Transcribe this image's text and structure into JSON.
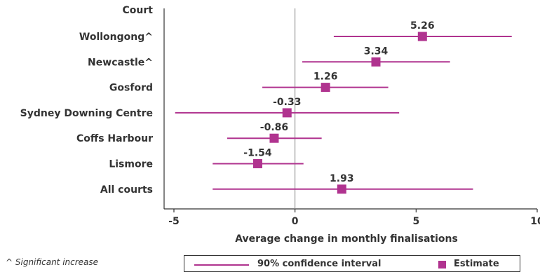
{
  "chart_data": {
    "type": "forest",
    "category_header": "Court",
    "categories": [
      "Wollongong^",
      "Newcastle^",
      "Gosford",
      "Sydney Downing Centre",
      "Coffs Harbour",
      "Lismore",
      "All courts"
    ],
    "estimates": [
      5.26,
      3.34,
      1.26,
      -0.33,
      -0.86,
      -1.54,
      1.93
    ],
    "value_labels": [
      "5.26",
      "3.34",
      "1.26",
      "-0.33",
      "-0.86",
      "-1.54",
      "1.93"
    ],
    "ci_low": [
      1.6,
      0.3,
      -1.35,
      -4.95,
      -2.8,
      -3.4,
      -3.4
    ],
    "ci_high": [
      8.95,
      6.4,
      3.85,
      4.3,
      1.1,
      0.35,
      7.35
    ],
    "xlabel": "Average change in monthly finalisations",
    "xlim": [
      -5,
      10
    ],
    "xticks": [
      -5,
      0,
      5,
      10
    ],
    "xtick_labels": [
      "-5",
      "0",
      "5",
      "10"
    ],
    "reference_line": 0,
    "legend": {
      "ci_label": "90% confidence interval",
      "estimate_label": "Estimate",
      "position": "bottom"
    },
    "note": "^ Significant increase",
    "colors": {
      "series": "#b0338f",
      "axis": "#333333",
      "reference": "#888888"
    }
  }
}
